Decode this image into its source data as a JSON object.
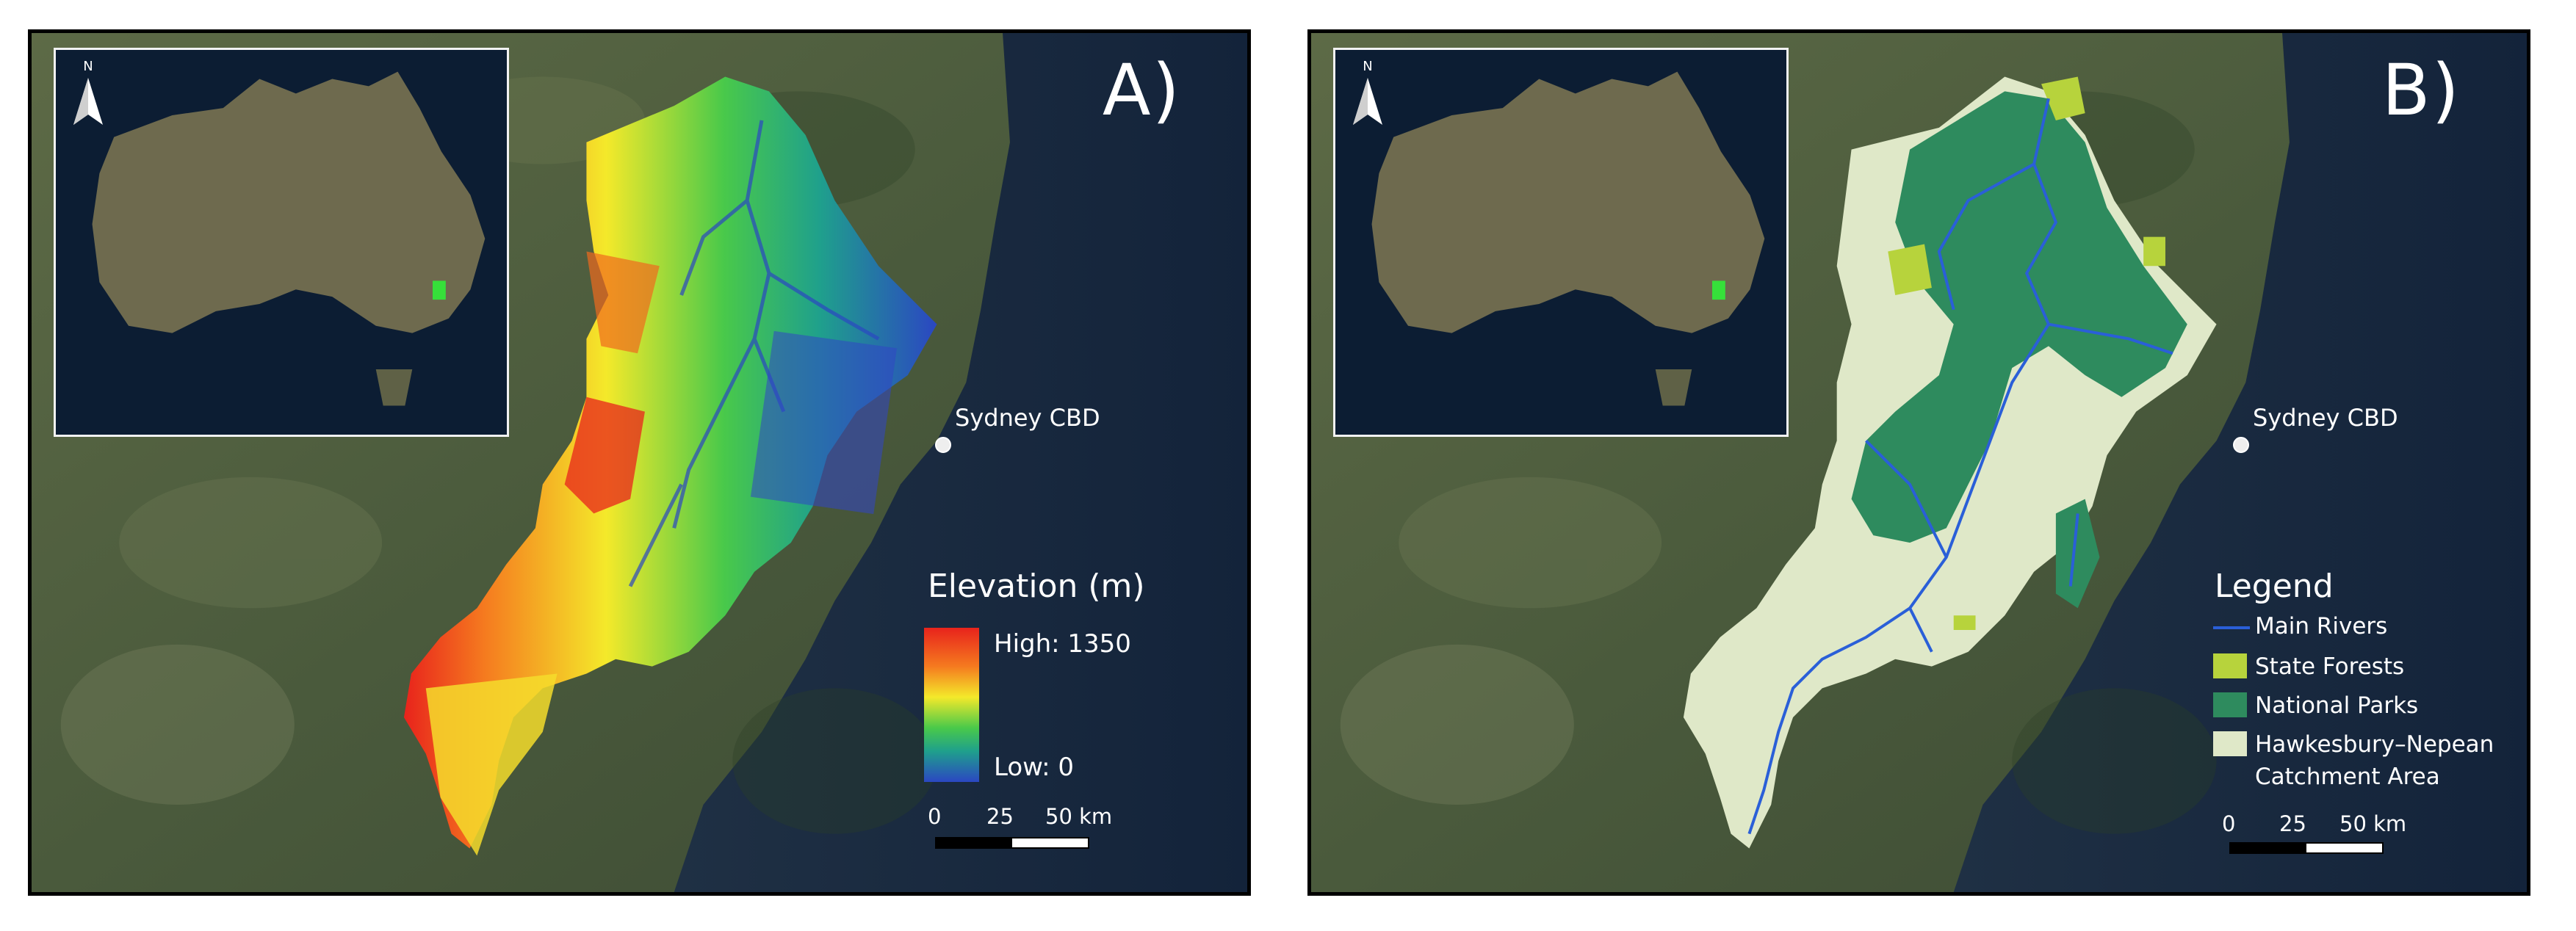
{
  "panels": [
    {
      "letter": "A)",
      "city_label": "Sydney CBD",
      "legend": {
        "title": "Elevation (m)",
        "high_label": "High: 1350",
        "low_label": "Low: 0"
      },
      "scale": {
        "labels": [
          "0",
          "25",
          "50 km"
        ]
      },
      "north_label": "N"
    },
    {
      "letter": "B)",
      "city_label": "Sydney CBD",
      "legend": {
        "title": "Legend",
        "items": [
          {
            "label": "Main Rivers",
            "color": "#2a5fd8",
            "kind": "line"
          },
          {
            "label": "State Forests",
            "color": "#b7d33c",
            "kind": "box"
          },
          {
            "label": "National Parks",
            "color": "#2e8b5e",
            "kind": "box"
          },
          {
            "label": "Hawkesbury–Nepean",
            "color": "#dfe8c8",
            "kind": "box"
          },
          {
            "label": "Catchment Area",
            "color": "",
            "kind": "text"
          }
        ]
      },
      "scale": {
        "labels": [
          "0",
          "25",
          "50 km"
        ]
      },
      "north_label": "N"
    }
  ],
  "colors": {
    "land": "#4a5a3c",
    "ocean": "#1b2d42",
    "elev_high": "#e8231c",
    "elev_mid": "#f4e92a",
    "elev_low": "#2b47c2",
    "state_forest": "#b7d33c",
    "national_park": "#2e8b5e",
    "catchment": "#dfe8c8",
    "river": "#2a5fd8",
    "inset_highlight": "#36e03a"
  }
}
